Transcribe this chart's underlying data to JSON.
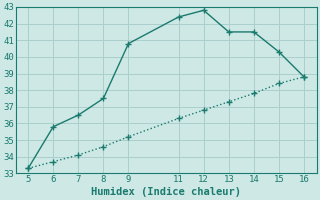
{
  "xlabel": "Humidex (Indice chaleur)",
  "ylabel": "",
  "line1_x": [
    5,
    6,
    7,
    8,
    9,
    11,
    12,
    13,
    14,
    15,
    16
  ],
  "line1_y": [
    33.3,
    35.8,
    36.5,
    37.5,
    40.8,
    42.4,
    42.8,
    41.5,
    41.5,
    40.3,
    38.8
  ],
  "line2_x": [
    5,
    6,
    7,
    8,
    9,
    11,
    12,
    13,
    14,
    15,
    16
  ],
  "line2_y": [
    33.3,
    33.7,
    34.1,
    34.6,
    35.2,
    36.3,
    36.8,
    37.3,
    37.8,
    38.4,
    38.8
  ],
  "line_color": "#1a7a6e",
  "bg_color": "#cde8e5",
  "grid_color": "#aacfcc",
  "xlim": [
    4.5,
    16.5
  ],
  "ylim": [
    33,
    43
  ],
  "xticks": [
    5,
    6,
    7,
    8,
    9,
    11,
    12,
    13,
    14,
    15,
    16
  ],
  "yticks": [
    33,
    34,
    35,
    36,
    37,
    38,
    39,
    40,
    41,
    42,
    43
  ],
  "marker": "+",
  "markersize": 4,
  "linewidth": 1.0,
  "tick_fontsize": 6.5,
  "xlabel_fontsize": 7.5
}
